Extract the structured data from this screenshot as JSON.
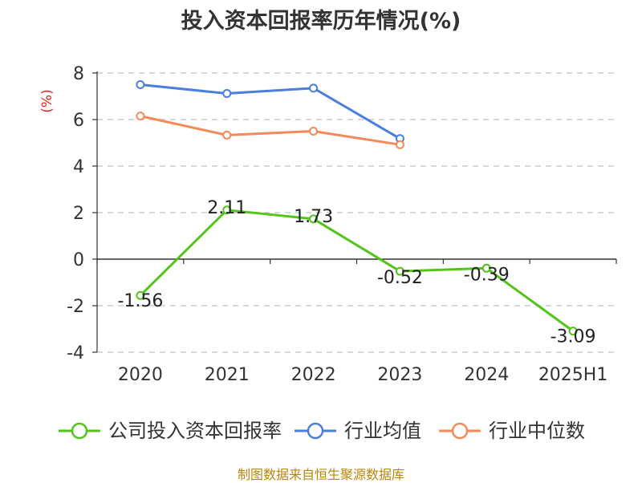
{
  "chart_data": {
    "type": "line",
    "title": "投入资本回报率历年情况(%)",
    "ylabel": "(%)",
    "categories": [
      "2020",
      "2021",
      "2022",
      "2023",
      "2024",
      "2025H1"
    ],
    "ylim": [
      -4,
      8
    ],
    "yticks": [
      -4,
      -2,
      0,
      2,
      4,
      6,
      8
    ],
    "grid": true,
    "legend_position": "bottom",
    "series": [
      {
        "name": "公司投入资本回报率",
        "color": "#52c41a",
        "values": [
          -1.56,
          2.11,
          1.73,
          -0.52,
          -0.39,
          -3.09
        ],
        "labels": [
          "-1.56",
          "2.11",
          "1.73",
          "-0.52",
          "-0.39",
          "-3.09"
        ]
      },
      {
        "name": "行业均值",
        "color": "#4a7fdc",
        "values": [
          7.5,
          7.12,
          7.35,
          5.18,
          null,
          null
        ]
      },
      {
        "name": "行业中位数",
        "color": "#f4895a",
        "values": [
          6.15,
          5.33,
          5.5,
          4.92,
          null,
          null
        ]
      }
    ],
    "source": "制图数据来自恒生聚源数据库"
  }
}
